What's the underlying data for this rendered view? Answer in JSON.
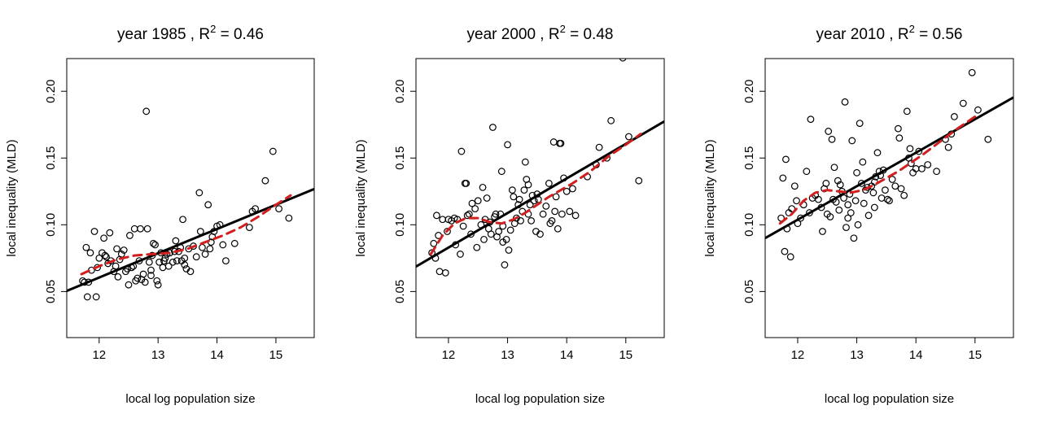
{
  "chart_data": [
    {
      "type": "scatter",
      "title_prefix": "year  1985 , R",
      "title_sup": "2",
      "title_suffix": " = 0.46",
      "xlabel": "local log population size",
      "ylabel": "local inequality (MLD)",
      "xlim": [
        11.45,
        15.65
      ],
      "ylim": [
        0.0155,
        0.2245
      ],
      "xticks": [
        12,
        13,
        14,
        15
      ],
      "xtick_labels": [
        "12",
        "13",
        "14",
        "15"
      ],
      "yticks": [
        0.05,
        0.1,
        0.15,
        0.2
      ],
      "ytick_labels": [
        "0.05",
        "0.10",
        "0.15",
        "0.20"
      ],
      "fit_line": {
        "x": [
          11.45,
          15.65
        ],
        "y": [
          0.0505,
          0.1268
        ],
        "color": "#000000"
      },
      "smooth_line": {
        "x": [
          11.7,
          12.0,
          12.3,
          12.6,
          12.9,
          13.2,
          13.5,
          13.8,
          14.1,
          14.4,
          14.7,
          15.0,
          15.25
        ],
        "y": [
          0.063,
          0.069,
          0.074,
          0.077,
          0.078,
          0.079,
          0.082,
          0.087,
          0.092,
          0.098,
          0.106,
          0.115,
          0.122
        ],
        "color": "#d11f1f"
      },
      "points": [
        [
          11.72,
          0.058
        ],
        [
          11.75,
          0.057
        ],
        [
          11.78,
          0.083
        ],
        [
          11.8,
          0.046
        ],
        [
          11.82,
          0.057
        ],
        [
          11.85,
          0.079
        ],
        [
          11.87,
          0.066
        ],
        [
          11.92,
          0.095
        ],
        [
          11.95,
          0.046
        ],
        [
          11.97,
          0.068
        ],
        [
          12.0,
          0.075
        ],
        [
          12.05,
          0.079
        ],
        [
          12.08,
          0.09
        ],
        [
          12.1,
          0.077
        ],
        [
          12.12,
          0.076
        ],
        [
          12.15,
          0.071
        ],
        [
          12.18,
          0.094
        ],
        [
          12.2,
          0.073
        ],
        [
          12.25,
          0.065
        ],
        [
          12.28,
          0.069
        ],
        [
          12.3,
          0.082
        ],
        [
          12.32,
          0.061
        ],
        [
          12.35,
          0.074
        ],
        [
          12.38,
          0.078
        ],
        [
          12.42,
          0.081
        ],
        [
          12.45,
          0.065
        ],
        [
          12.48,
          0.067
        ],
        [
          12.5,
          0.055
        ],
        [
          12.52,
          0.092
        ],
        [
          12.55,
          0.068
        ],
        [
          12.58,
          0.069
        ],
        [
          12.6,
          0.097
        ],
        [
          12.62,
          0.058
        ],
        [
          12.65,
          0.06
        ],
        [
          12.68,
          0.073
        ],
        [
          12.7,
          0.097
        ],
        [
          12.72,
          0.059
        ],
        [
          12.75,
          0.063
        ],
        [
          12.78,
          0.057
        ],
        [
          12.8,
          0.185
        ],
        [
          12.82,
          0.097
        ],
        [
          12.85,
          0.072
        ],
        [
          12.88,
          0.066
        ],
        [
          12.9,
          0.077
        ],
        [
          12.92,
          0.086
        ],
        [
          12.95,
          0.085
        ],
        [
          12.98,
          0.058
        ],
        [
          13.0,
          0.055
        ],
        [
          13.02,
          0.072
        ],
        [
          13.05,
          0.079
        ],
        [
          13.08,
          0.068
        ],
        [
          13.1,
          0.073
        ],
        [
          13.12,
          0.075
        ],
        [
          13.15,
          0.078
        ],
        [
          13.18,
          0.069
        ],
        [
          13.2,
          0.079
        ],
        [
          13.25,
          0.072
        ],
        [
          13.28,
          0.08
        ],
        [
          13.3,
          0.088
        ],
        [
          13.32,
          0.073
        ],
        [
          13.35,
          0.08
        ],
        [
          13.38,
          0.083
        ],
        [
          13.4,
          0.073
        ],
        [
          13.42,
          0.104
        ],
        [
          13.45,
          0.07
        ],
        [
          13.48,
          0.067
        ],
        [
          13.52,
          0.082
        ],
        [
          13.55,
          0.065
        ],
        [
          13.6,
          0.084
        ],
        [
          13.65,
          0.076
        ],
        [
          13.7,
          0.124
        ],
        [
          13.72,
          0.095
        ],
        [
          13.75,
          0.083
        ],
        [
          13.8,
          0.078
        ],
        [
          13.85,
          0.115
        ],
        [
          13.88,
          0.082
        ],
        [
          13.9,
          0.087
        ],
        [
          13.92,
          0.091
        ],
        [
          13.95,
          0.095
        ],
        [
          14.0,
          0.099
        ],
        [
          14.05,
          0.1
        ],
        [
          14.1,
          0.085
        ],
        [
          14.15,
          0.073
        ],
        [
          14.3,
          0.086
        ],
        [
          14.55,
          0.098
        ],
        [
          14.6,
          0.11
        ],
        [
          14.65,
          0.112
        ],
        [
          14.82,
          0.133
        ],
        [
          14.95,
          0.155
        ],
        [
          15.05,
          0.112
        ],
        [
          15.22,
          0.105
        ],
        [
          12.88,
          0.062
        ],
        [
          13.45,
          0.075
        ]
      ]
    },
    {
      "type": "scatter",
      "title_prefix": "year  2000 , R",
      "title_sup": "2",
      "title_suffix": " = 0.48",
      "xlabel": "local log population size",
      "ylabel": "local inequality (MLD)",
      "xlim": [
        11.45,
        15.65
      ],
      "ylim": [
        0.0155,
        0.2245
      ],
      "xticks": [
        12,
        13,
        14,
        15
      ],
      "xtick_labels": [
        "12",
        "13",
        "14",
        "15"
      ],
      "yticks": [
        0.05,
        0.1,
        0.15,
        0.2
      ],
      "ytick_labels": [
        "0.05",
        "0.10",
        "0.15",
        "0.20"
      ],
      "fit_line": {
        "x": [
          11.45,
          15.65
        ],
        "y": [
          0.0687,
          0.1774
        ],
        "color": "#000000"
      },
      "smooth_line": {
        "x": [
          11.7,
          11.9,
          12.1,
          12.3,
          12.5,
          12.7,
          12.9,
          13.1,
          13.3,
          13.5,
          13.7,
          13.9,
          14.1,
          14.4,
          14.7,
          15.0,
          15.25
        ],
        "y": [
          0.078,
          0.092,
          0.101,
          0.105,
          0.105,
          0.102,
          0.101,
          0.104,
          0.109,
          0.115,
          0.121,
          0.126,
          0.131,
          0.14,
          0.151,
          0.16,
          0.168
        ],
        "color": "#d11f1f"
      },
      "points": [
        [
          11.72,
          0.079
        ],
        [
          11.75,
          0.086
        ],
        [
          11.78,
          0.075
        ],
        [
          11.8,
          0.107
        ],
        [
          11.83,
          0.092
        ],
        [
          11.85,
          0.065
        ],
        [
          11.9,
          0.104
        ],
        [
          11.95,
          0.064
        ],
        [
          11.98,
          0.095
        ],
        [
          12.0,
          0.104
        ],
        [
          12.05,
          0.103
        ],
        [
          12.1,
          0.105
        ],
        [
          12.12,
          0.085
        ],
        [
          12.15,
          0.104
        ],
        [
          12.2,
          0.078
        ],
        [
          12.22,
          0.155
        ],
        [
          12.25,
          0.099
        ],
        [
          12.28,
          0.131
        ],
        [
          12.3,
          0.131
        ],
        [
          12.32,
          0.107
        ],
        [
          12.35,
          0.108
        ],
        [
          12.38,
          0.093
        ],
        [
          12.4,
          0.116
        ],
        [
          12.45,
          0.112
        ],
        [
          12.48,
          0.083
        ],
        [
          12.5,
          0.118
        ],
        [
          12.55,
          0.1
        ],
        [
          12.58,
          0.128
        ],
        [
          12.6,
          0.089
        ],
        [
          12.62,
          0.104
        ],
        [
          12.65,
          0.12
        ],
        [
          12.68,
          0.097
        ],
        [
          12.7,
          0.102
        ],
        [
          12.72,
          0.093
        ],
        [
          12.75,
          0.173
        ],
        [
          12.78,
          0.106
        ],
        [
          12.8,
          0.108
        ],
        [
          12.82,
          0.091
        ],
        [
          12.85,
          0.095
        ],
        [
          12.88,
          0.108
        ],
        [
          12.9,
          0.14
        ],
        [
          12.92,
          0.087
        ],
        [
          12.95,
          0.07
        ],
        [
          12.98,
          0.089
        ],
        [
          13.0,
          0.16
        ],
        [
          13.02,
          0.081
        ],
        [
          13.05,
          0.096
        ],
        [
          13.08,
          0.126
        ],
        [
          13.1,
          0.121
        ],
        [
          13.12,
          0.101
        ],
        [
          13.15,
          0.105
        ],
        [
          13.18,
          0.115
        ],
        [
          13.2,
          0.119
        ],
        [
          13.22,
          0.103
        ],
        [
          13.25,
          0.11
        ],
        [
          13.28,
          0.126
        ],
        [
          13.3,
          0.147
        ],
        [
          13.32,
          0.134
        ],
        [
          13.35,
          0.13
        ],
        [
          13.38,
          0.115
        ],
        [
          13.4,
          0.103
        ],
        [
          13.42,
          0.122
        ],
        [
          13.45,
          0.118
        ],
        [
          13.48,
          0.095
        ],
        [
          13.5,
          0.123
        ],
        [
          13.52,
          0.119
        ],
        [
          13.55,
          0.093
        ],
        [
          13.6,
          0.108
        ],
        [
          13.65,
          0.114
        ],
        [
          13.7,
          0.131
        ],
        [
          13.72,
          0.101
        ],
        [
          13.75,
          0.103
        ],
        [
          13.78,
          0.162
        ],
        [
          13.8,
          0.11
        ],
        [
          13.82,
          0.121
        ],
        [
          13.85,
          0.097
        ],
        [
          13.88,
          0.161
        ],
        [
          13.9,
          0.161
        ],
        [
          13.92,
          0.108
        ],
        [
          13.95,
          0.135
        ],
        [
          14.0,
          0.125
        ],
        [
          14.05,
          0.11
        ],
        [
          14.1,
          0.127
        ],
        [
          14.15,
          0.107
        ],
        [
          14.35,
          0.136
        ],
        [
          14.5,
          0.145
        ],
        [
          14.55,
          0.158
        ],
        [
          14.68,
          0.15
        ],
        [
          14.75,
          0.178
        ],
        [
          14.95,
          0.225
        ],
        [
          15.05,
          0.166
        ],
        [
          15.22,
          0.133
        ],
        [
          12.92,
          0.099
        ],
        [
          13.35,
          0.108
        ]
      ]
    },
    {
      "type": "scatter",
      "title_prefix": "year  2010 , R",
      "title_sup": "2",
      "title_suffix": " = 0.56",
      "xlabel": "local log population size",
      "ylabel": "local inequality (MLD)",
      "xlim": [
        11.45,
        15.65
      ],
      "ylim": [
        0.0155,
        0.2245
      ],
      "xticks": [
        12,
        13,
        14,
        15
      ],
      "xtick_labels": [
        "12",
        "13",
        "14",
        "15"
      ],
      "yticks": [
        0.05,
        0.1,
        0.15,
        0.2
      ],
      "ytick_labels": [
        "0.05",
        "0.10",
        "0.15",
        "0.20"
      ],
      "fit_line": {
        "x": [
          11.45,
          15.65
        ],
        "y": [
          0.09,
          0.1954
        ],
        "color": "#000000"
      },
      "smooth_line": {
        "x": [
          11.7,
          11.9,
          12.1,
          12.3,
          12.5,
          12.7,
          12.9,
          13.1,
          13.3,
          13.5,
          13.7,
          13.9,
          14.1,
          14.4,
          14.7,
          15.0
        ],
        "y": [
          0.101,
          0.108,
          0.118,
          0.124,
          0.126,
          0.125,
          0.124,
          0.126,
          0.13,
          0.135,
          0.14,
          0.146,
          0.152,
          0.162,
          0.172,
          0.181
        ],
        "color": "#d11f1f"
      },
      "points": [
        [
          11.72,
          0.105
        ],
        [
          11.75,
          0.135
        ],
        [
          11.78,
          0.08
        ],
        [
          11.8,
          0.149
        ],
        [
          11.82,
          0.097
        ],
        [
          11.85,
          0.109
        ],
        [
          11.88,
          0.076
        ],
        [
          11.9,
          0.112
        ],
        [
          11.95,
          0.129
        ],
        [
          11.98,
          0.118
        ],
        [
          12.0,
          0.101
        ],
        [
          12.05,
          0.105
        ],
        [
          12.1,
          0.115
        ],
        [
          12.15,
          0.14
        ],
        [
          12.2,
          0.109
        ],
        [
          12.22,
          0.179
        ],
        [
          12.25,
          0.12
        ],
        [
          12.3,
          0.122
        ],
        [
          12.35,
          0.119
        ],
        [
          12.4,
          0.113
        ],
        [
          12.42,
          0.095
        ],
        [
          12.45,
          0.127
        ],
        [
          12.48,
          0.131
        ],
        [
          12.5,
          0.108
        ],
        [
          12.52,
          0.17
        ],
        [
          12.55,
          0.106
        ],
        [
          12.58,
          0.164
        ],
        [
          12.6,
          0.119
        ],
        [
          12.62,
          0.143
        ],
        [
          12.65,
          0.117
        ],
        [
          12.68,
          0.133
        ],
        [
          12.7,
          0.111
        ],
        [
          12.72,
          0.13
        ],
        [
          12.75,
          0.125
        ],
        [
          12.78,
          0.12
        ],
        [
          12.8,
          0.192
        ],
        [
          12.82,
          0.098
        ],
        [
          12.85,
          0.115
        ],
        [
          12.88,
          0.123
        ],
        [
          12.9,
          0.109
        ],
        [
          12.92,
          0.163
        ],
        [
          12.95,
          0.09
        ],
        [
          12.98,
          0.118
        ],
        [
          13.0,
          0.139
        ],
        [
          13.02,
          0.1
        ],
        [
          13.05,
          0.176
        ],
        [
          13.08,
          0.131
        ],
        [
          13.1,
          0.147
        ],
        [
          13.12,
          0.116
        ],
        [
          13.15,
          0.126
        ],
        [
          13.18,
          0.128
        ],
        [
          13.2,
          0.107
        ],
        [
          13.25,
          0.129
        ],
        [
          13.28,
          0.124
        ],
        [
          13.3,
          0.113
        ],
        [
          13.32,
          0.136
        ],
        [
          13.35,
          0.154
        ],
        [
          13.38,
          0.14
        ],
        [
          13.4,
          0.137
        ],
        [
          13.42,
          0.12
        ],
        [
          13.45,
          0.141
        ],
        [
          13.48,
          0.126
        ],
        [
          13.52,
          0.119
        ],
        [
          13.55,
          0.118
        ],
        [
          13.6,
          0.134
        ],
        [
          13.65,
          0.129
        ],
        [
          13.7,
          0.172
        ],
        [
          13.72,
          0.165
        ],
        [
          13.75,
          0.127
        ],
        [
          13.8,
          0.122
        ],
        [
          13.85,
          0.185
        ],
        [
          13.88,
          0.15
        ],
        [
          13.9,
          0.157
        ],
        [
          13.92,
          0.146
        ],
        [
          13.95,
          0.139
        ],
        [
          14.0,
          0.142
        ],
        [
          14.05,
          0.155
        ],
        [
          14.1,
          0.142
        ],
        [
          14.2,
          0.145
        ],
        [
          14.35,
          0.14
        ],
        [
          14.5,
          0.164
        ],
        [
          14.55,
          0.158
        ],
        [
          14.6,
          0.168
        ],
        [
          14.65,
          0.181
        ],
        [
          14.8,
          0.191
        ],
        [
          14.95,
          0.214
        ],
        [
          15.05,
          0.186
        ],
        [
          15.22,
          0.164
        ],
        [
          12.85,
          0.105
        ],
        [
          13.3,
          0.132
        ]
      ]
    }
  ]
}
